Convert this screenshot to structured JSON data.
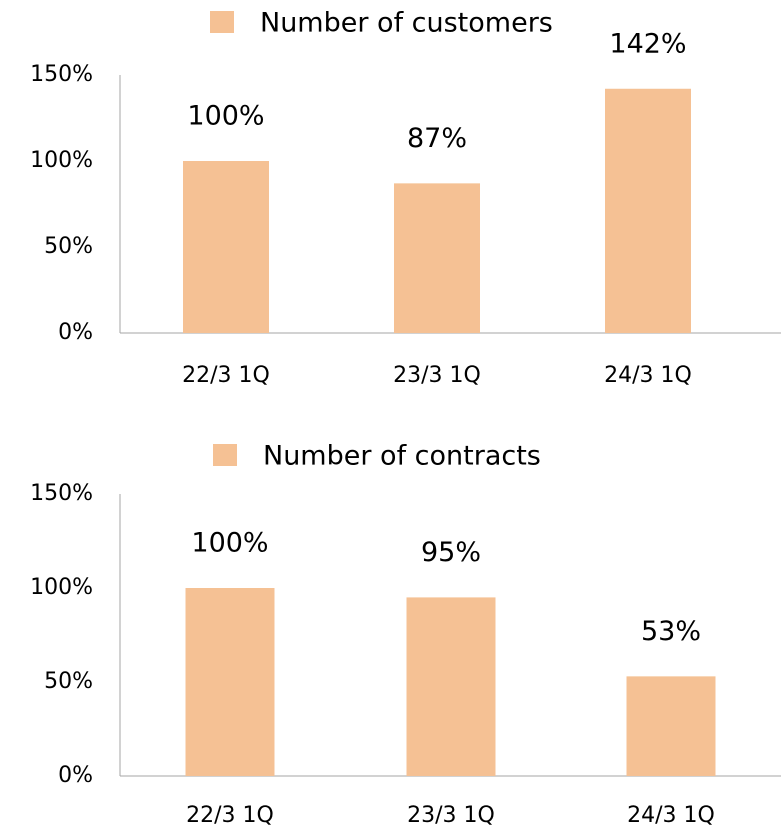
{
  "chart_data": [
    {
      "type": "bar",
      "categories": [
        "22/3 1Q",
        "23/3 1Q",
        "24/3 1Q"
      ],
      "series": [
        {
          "name": "Number of customers",
          "color": "#f5c194",
          "values": [
            100,
            87,
            142
          ],
          "value_labels": [
            "100%",
            "87%",
            "142%"
          ]
        }
      ],
      "ylim": [
        0,
        150
      ],
      "yticks": [
        {
          "value": 0,
          "label": "0%"
        },
        {
          "value": 50,
          "label": "50%"
        },
        {
          "value": 100,
          "label": "100%"
        },
        {
          "value": 150,
          "label": "150%"
        }
      ]
    },
    {
      "type": "bar",
      "categories": [
        "22/3 1Q",
        "23/3 1Q",
        "24/3 1Q"
      ],
      "series": [
        {
          "name": "Number of contracts",
          "color": "#f5c194",
          "values": [
            100,
            95,
            53
          ],
          "value_labels": [
            "100%",
            "95%",
            "53%"
          ]
        }
      ],
      "ylim": [
        0,
        150
      ],
      "yticks": [
        {
          "value": 0,
          "label": "0%"
        },
        {
          "value": 50,
          "label": "50%"
        },
        {
          "value": 100,
          "label": "100%"
        },
        {
          "value": 150,
          "label": "150%"
        }
      ]
    }
  ]
}
